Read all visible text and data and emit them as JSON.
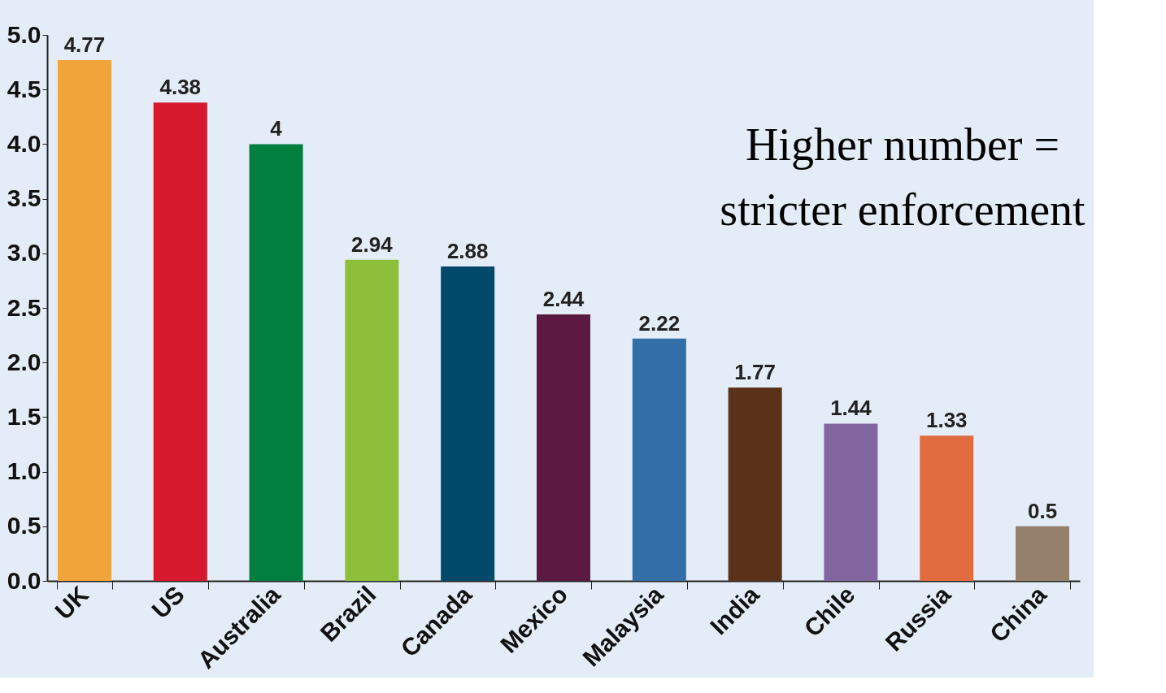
{
  "chart_data": {
    "type": "bar",
    "categories": [
      "UK",
      "US",
      "Australia",
      "Brazil",
      "Canada",
      "Mexico",
      "Malaysia",
      "India",
      "Chile",
      "Russia",
      "China"
    ],
    "values": [
      4.77,
      4.38,
      4,
      2.94,
      2.88,
      2.44,
      2.22,
      1.77,
      1.44,
      1.33,
      0.5
    ],
    "colors": [
      "#f0a43a",
      "#d7192e",
      "#007f3e",
      "#8dbf3b",
      "#00496b",
      "#5c1a42",
      "#336ea9",
      "#5a3219",
      "#8366a0",
      "#e06c40",
      "#94806b"
    ],
    "ylim": [
      0,
      5.0
    ],
    "yticks": [
      {
        "value": 0,
        "label": "0.0"
      },
      0.5,
      {
        "value": 1,
        "label": "1.0"
      },
      1.5,
      {
        "value": 2,
        "label": "2.0"
      },
      2.5,
      {
        "value": 3,
        "label": "3.0"
      },
      3.5,
      {
        "value": 4,
        "label": "4.0"
      },
      4.5,
      {
        "value": 5,
        "label": "5.0"
      }
    ],
    "data_labels": true,
    "grid": false,
    "annotations": [
      "Higher number = stricter enforcement"
    ]
  }
}
